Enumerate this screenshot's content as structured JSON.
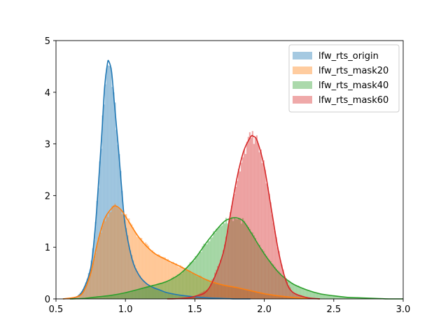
{
  "chart_data": {
    "type": "area",
    "title": "",
    "xlabel": "",
    "ylabel": "",
    "xlim": [
      0.5,
      3.0
    ],
    "ylim": [
      0,
      5
    ],
    "xticks": [
      0.5,
      1.0,
      1.5,
      2.0,
      2.5,
      3.0
    ],
    "xtick_labels": [
      "0.5",
      "1.0",
      "1.5",
      "2.0",
      "2.5",
      "3.0"
    ],
    "yticks": [
      0,
      1,
      2,
      3,
      4,
      5
    ],
    "ytick_labels": [
      "0",
      "1",
      "2",
      "3",
      "4",
      "5"
    ],
    "grid": false,
    "legend_position": "top-right",
    "description": "Overlaid density histograms with KDE curves",
    "series": [
      {
        "name": "lfw_rts_origin",
        "color": "#1f77b4",
        "x": [
          0.55,
          0.65,
          0.7,
          0.75,
          0.78,
          0.8,
          0.83,
          0.85,
          0.87,
          0.88,
          0.9,
          0.92,
          0.95,
          0.98,
          1.0,
          1.05,
          1.1,
          1.15,
          1.2,
          1.25,
          1.3,
          1.4,
          1.5,
          1.6,
          1.7,
          1.8,
          1.9
        ],
        "y": [
          0.0,
          0.04,
          0.2,
          0.6,
          1.3,
          2.0,
          3.2,
          4.1,
          4.55,
          4.6,
          4.4,
          3.8,
          2.9,
          1.9,
          1.4,
          0.75,
          0.45,
          0.3,
          0.22,
          0.17,
          0.12,
          0.07,
          0.04,
          0.02,
          0.01,
          0.0,
          0.0
        ]
      },
      {
        "name": "lfw_rts_mask20",
        "color": "#ff7f0e",
        "x": [
          0.55,
          0.65,
          0.7,
          0.75,
          0.8,
          0.85,
          0.9,
          0.93,
          0.97,
          1.0,
          1.1,
          1.2,
          1.3,
          1.4,
          1.5,
          1.6,
          1.7,
          1.8,
          1.9,
          2.0,
          2.1,
          2.2,
          2.3,
          2.4
        ],
        "y": [
          0.0,
          0.04,
          0.15,
          0.5,
          1.1,
          1.55,
          1.75,
          1.8,
          1.72,
          1.6,
          1.18,
          0.9,
          0.75,
          0.62,
          0.48,
          0.35,
          0.27,
          0.22,
          0.16,
          0.1,
          0.06,
          0.03,
          0.01,
          0.0
        ]
      },
      {
        "name": "lfw_rts_mask40",
        "color": "#2ca02c",
        "x": [
          0.6,
          0.7,
          0.8,
          0.9,
          1.0,
          1.1,
          1.2,
          1.3,
          1.4,
          1.5,
          1.6,
          1.7,
          1.75,
          1.8,
          1.85,
          1.9,
          2.0,
          2.1,
          2.2,
          2.3,
          2.4,
          2.5,
          2.6,
          2.7,
          2.8,
          2.9,
          3.0
        ],
        "y": [
          0.0,
          0.01,
          0.04,
          0.07,
          0.12,
          0.19,
          0.26,
          0.34,
          0.5,
          0.78,
          1.15,
          1.47,
          1.55,
          1.57,
          1.5,
          1.3,
          0.87,
          0.52,
          0.3,
          0.18,
          0.1,
          0.06,
          0.03,
          0.02,
          0.01,
          0.0,
          0.0
        ]
      },
      {
        "name": "lfw_rts_mask60",
        "color": "#d62728",
        "x": [
          1.3,
          1.4,
          1.5,
          1.6,
          1.7,
          1.75,
          1.8,
          1.85,
          1.9,
          1.92,
          1.95,
          2.0,
          2.05,
          2.1,
          2.15,
          2.2,
          2.3,
          2.4
        ],
        "y": [
          0.0,
          0.01,
          0.05,
          0.2,
          0.85,
          1.55,
          2.3,
          2.85,
          3.13,
          3.15,
          3.05,
          2.55,
          1.75,
          0.95,
          0.4,
          0.14,
          0.03,
          0.0
        ]
      }
    ]
  }
}
